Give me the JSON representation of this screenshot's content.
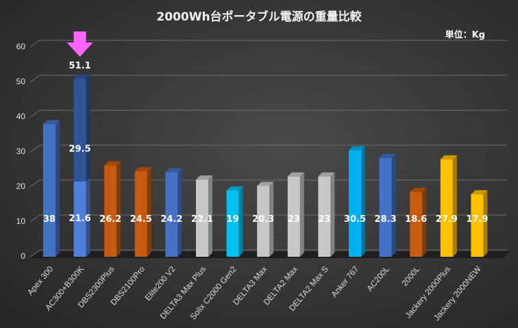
{
  "chart_data": {
    "type": "bar",
    "title": "2000Wh台ポータブル電源の重量比較",
    "unit_label": "単位：Kg",
    "ylim": [
      0,
      60
    ],
    "yticks": [
      "0",
      "10",
      "20",
      "30",
      "40",
      "50",
      "60"
    ],
    "grid": true,
    "categories": [
      "Apex 300",
      "AC300+B300K",
      "DBS2300Plus",
      "DBS2100Pro",
      "Elite200 V2",
      "DELTA3 Max Plus",
      "Solix C2000 Gen2",
      "DELTA3 Max",
      "DELTA2 Max",
      "DELTA2 Max S",
      "Anker 767",
      "AC200L",
      "2000L",
      "Jackery 2000Plus",
      "Jackery 2000NEW"
    ],
    "values": [
      38,
      21.6,
      26.2,
      24.5,
      24.2,
      22.1,
      19,
      20.3,
      23,
      23,
      30.5,
      28.3,
      18.6,
      27.9,
      17.9
    ],
    "value_labels": [
      "38",
      "21.6",
      "26.2",
      "24.5",
      "24.2",
      "22.1",
      "19",
      "20.3",
      "23",
      "23",
      "30.5",
      "28.3",
      "18.6",
      "27.9",
      "17.9"
    ],
    "colors": [
      "#4472c4",
      "#4f7fd6",
      "#c55a11",
      "#c55a11",
      "#4472c4",
      "#c8c8c8",
      "#00c0f0",
      "#c8c8c8",
      "#c8c8c8",
      "#c8c8c8",
      "#00b0f0",
      "#4472c4",
      "#c55a11",
      "#ffc000",
      "#ffc000"
    ],
    "stacked_extra": {
      "category_index": 1,
      "value": 29.5,
      "label": "29.5",
      "color": "#2f5597"
    },
    "total_annotation": {
      "category_index": 1,
      "label": "51.1",
      "arrow_color": "#ff66ff"
    }
  }
}
